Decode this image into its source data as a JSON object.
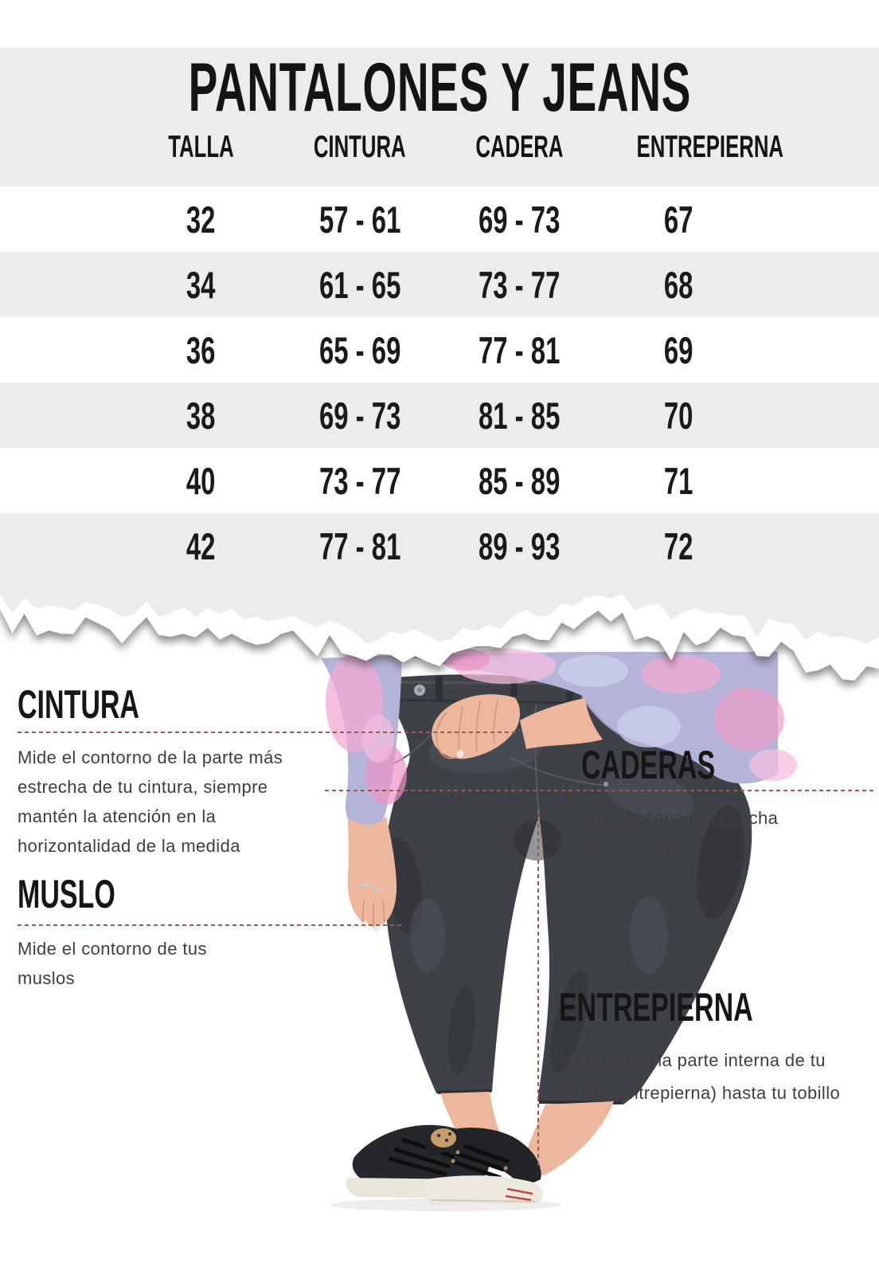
{
  "chart_data": {
    "type": "table",
    "title": "PANTALONES Y JEANS",
    "columns": [
      "TALLA",
      "CINTURA",
      "CADERA",
      "ENTREPIERNA"
    ],
    "rows": [
      [
        "32",
        "57 - 61",
        "69 - 73",
        "67"
      ],
      [
        "34",
        "61 - 65",
        "73 - 77",
        "68"
      ],
      [
        "36",
        "65 - 69",
        "77 - 81",
        "69"
      ],
      [
        "38",
        "69 - 73",
        "81 - 85",
        "70"
      ],
      [
        "40",
        "73 - 77",
        "85 - 89",
        "71"
      ],
      [
        "42",
        "77 - 81",
        "89 - 93",
        "72"
      ]
    ]
  },
  "annotations": {
    "cintura": {
      "heading": "CINTURA",
      "text": "Mide el contorno de la parte más\nestrecha de tu cintura, siempre\nmantén la atención en  la\nhorizontalidad de la medida"
    },
    "muslo": {
      "heading": "MUSLO",
      "text": "Mide el contorno de tus\nmuslos"
    },
    "caderas": {
      "heading": "CADERAS",
      "text": "Mide la zona más ancha\nde tus caderas"
    },
    "entrepierna": {
      "heading": "ENTREPIERNA",
      "text": "Mide desde la parte interna de tu\nmuslo (entrepierna) hasta tu tobillo"
    }
  },
  "colors": {
    "band_gray": "#ececec",
    "table_text": "#1a1a1a",
    "body_text": "#3e3e3e",
    "dash_red": "#9b5a4e",
    "jeans": "#3e4146",
    "shirt_lilac": "#b4b4d8",
    "shirt_pink": "#f0a0cf",
    "skin": "#ecb79c",
    "sole_cream": "#eae5d9"
  }
}
